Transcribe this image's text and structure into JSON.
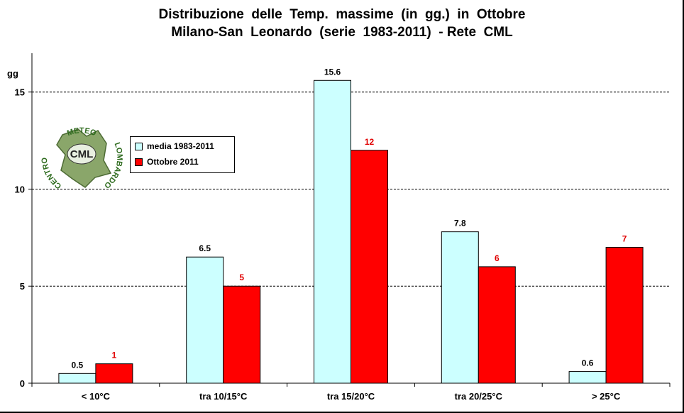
{
  "chart_data": {
    "type": "bar",
    "title": "Distribuzione  delle  Temp.  massime  (in  gg.)  in  Ottobre",
    "subtitle": "Milano-San  Leonardo  (serie  1983-2011)  - Rete  CML",
    "ylabel": "gg",
    "xlabel": "",
    "ylim": [
      0,
      17
    ],
    "yticks": [
      0,
      5,
      10,
      15
    ],
    "grid": true,
    "legend_placement": "top-left",
    "categories": [
      "< 10°C",
      "tra 10/15°C",
      "tra 15/20°C",
      "tra 20/25°C",
      "> 25°C"
    ],
    "series": [
      {
        "name": "media 1983-2011",
        "values": [
          0.5,
          6.5,
          15.6,
          7.8,
          0.6
        ],
        "color": "#ccffff",
        "label_color": "#000000"
      },
      {
        "name": "Ottobre 2011",
        "values": [
          1,
          5,
          12,
          6,
          7
        ],
        "color": "#ff0000",
        "label_color": "#e00000"
      }
    ],
    "data_labels": [
      [
        "0.5",
        "6.5",
        "15.6",
        "7.8",
        "0.6"
      ],
      [
        "1",
        "5",
        "12",
        "6",
        "7"
      ]
    ]
  },
  "logo": {
    "top_text": "METEO",
    "left_text": "CENTRO",
    "right_text": "LOMBARDO",
    "center_text": "CML"
  }
}
